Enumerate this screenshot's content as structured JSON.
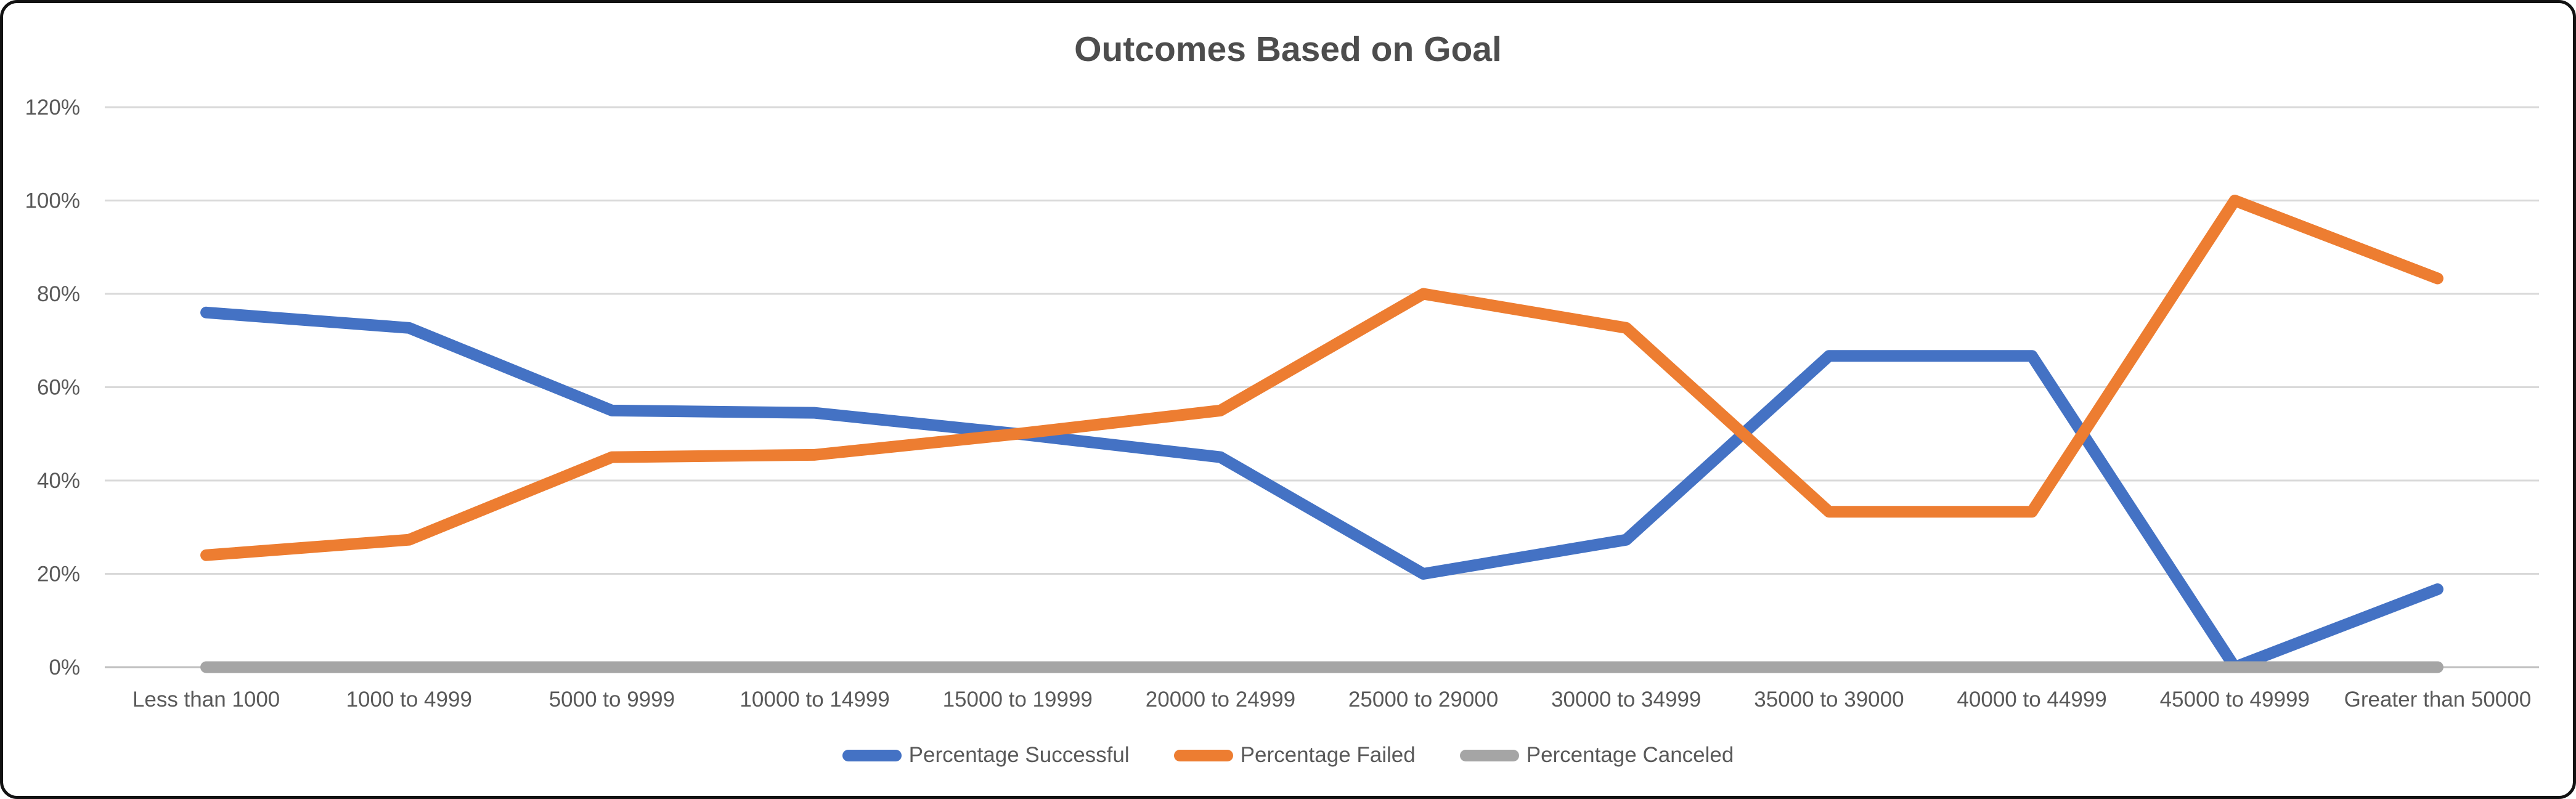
{
  "title": "Outcomes Based on Goal",
  "chart_data": {
    "type": "line",
    "title": "Outcomes Based on Goal",
    "categories": [
      "Less than 1000",
      "1000 to 4999",
      "5000 to 9999",
      "10000 to 14999",
      "15000 to 19999",
      "20000 to 24999",
      "25000 to 29000",
      "30000 to 34999",
      "35000 to 39000",
      "40000 to 44999",
      "45000 to 49999",
      "Greater than 50000"
    ],
    "series": [
      {
        "name": "Percentage Successful",
        "color": "#4472C4",
        "values": [
          76,
          72.7,
          55,
          54.5,
          50,
          45,
          20,
          27.3,
          66.7,
          66.7,
          0,
          16.7
        ]
      },
      {
        "name": "Percentage Failed",
        "color": "#ED7D31",
        "values": [
          24,
          27.3,
          45,
          45.5,
          50,
          55,
          80,
          72.7,
          33.3,
          33.3,
          100,
          83.3
        ]
      },
      {
        "name": "Percentage Canceled",
        "color": "#A5A5A5",
        "values": [
          0,
          0,
          0,
          0,
          0,
          0,
          0,
          0,
          0,
          0,
          0,
          0
        ]
      }
    ],
    "ylabel": "",
    "xlabel": "",
    "ylim": [
      0,
      120
    ],
    "ytick_step": 20,
    "ytick_labels": [
      "0%",
      "20%",
      "40%",
      "60%",
      "80%",
      "100%",
      "120%"
    ],
    "grid": true,
    "legend_position": "bottom",
    "gridline_color": "#D9D9D9",
    "axis_line_color": "#BFBFBF",
    "text_color": "#595959"
  }
}
